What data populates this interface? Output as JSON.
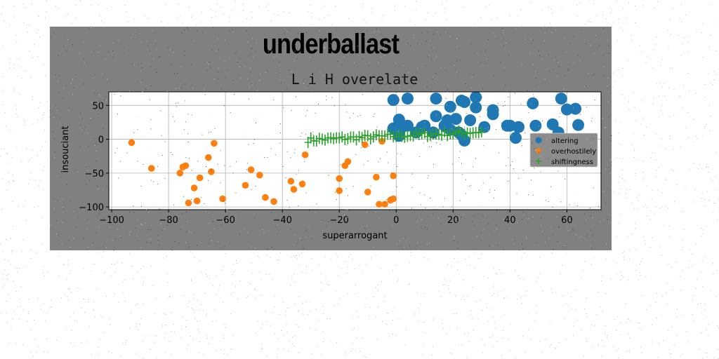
{
  "figure": {
    "super_title": "underballast"
  },
  "chart_data": {
    "type": "scatter",
    "title": "L i H overelate",
    "xlabel": "superarrogant",
    "ylabel": "insouciant",
    "xlim": [
      -101,
      72
    ],
    "ylim": [
      -104,
      70
    ],
    "xticks": [
      -100,
      -80,
      -60,
      -40,
      -20,
      0,
      20,
      40,
      60
    ],
    "yticks": [
      -100,
      -50,
      0,
      50
    ],
    "grid": true,
    "legend_position": "center-right",
    "series": [
      {
        "name": "altering",
        "marker": "circle-large",
        "color": "#1f77b4",
        "points": [
          [
            -1,
            58
          ],
          [
            4,
            60
          ],
          [
            14,
            60
          ],
          [
            23,
            57
          ],
          [
            24,
            55
          ],
          [
            28,
            62
          ],
          [
            28,
            47
          ],
          [
            19,
            48
          ],
          [
            34,
            37
          ],
          [
            34,
            43
          ],
          [
            31,
            18
          ],
          [
            17,
            20
          ],
          [
            18,
            28
          ],
          [
            21,
            30
          ],
          [
            26,
            28
          ],
          [
            19,
            14
          ],
          [
            10,
            20
          ],
          [
            9,
            18
          ],
          [
            2,
            18
          ],
          [
            -1,
            16
          ],
          [
            1,
            22
          ],
          [
            1,
            29
          ],
          [
            4,
            20
          ],
          [
            7,
            10
          ],
          [
            13,
            10
          ],
          [
            14,
            34
          ],
          [
            22,
            10
          ],
          [
            23,
            6
          ],
          [
            24,
            -2
          ],
          [
            1,
            5
          ],
          [
            40,
            20
          ],
          [
            39,
            20
          ],
          [
            43,
            18
          ],
          [
            42,
            2
          ],
          [
            48,
            53
          ],
          [
            49,
            20
          ],
          [
            55,
            22
          ],
          [
            57,
            10
          ],
          [
            58,
            60
          ],
          [
            60,
            44
          ],
          [
            63,
            45
          ],
          [
            64,
            21
          ]
        ]
      },
      {
        "name": "overhostilely",
        "marker": "circle-small",
        "color": "#ff7f0e",
        "points": [
          [
            -93,
            -5
          ],
          [
            -86,
            -43
          ],
          [
            -76,
            -50
          ],
          [
            -75,
            -41
          ],
          [
            -74,
            -39
          ],
          [
            -73,
            -94
          ],
          [
            -71,
            -72
          ],
          [
            -70,
            -91
          ],
          [
            -69,
            -57
          ],
          [
            -66,
            -27
          ],
          [
            -65,
            -48
          ],
          [
            -64,
            -6
          ],
          [
            -61,
            -88
          ],
          [
            -53,
            -68
          ],
          [
            -51,
            -45
          ],
          [
            -48,
            -53
          ],
          [
            -46,
            -86
          ],
          [
            -43,
            -92
          ],
          [
            -37,
            -62
          ],
          [
            -36,
            -74
          ],
          [
            -33,
            -66
          ],
          [
            -32,
            -23
          ],
          [
            -20,
            -58
          ],
          [
            -20,
            -76
          ],
          [
            -18,
            -39
          ],
          [
            -17,
            -33
          ],
          [
            -11,
            -8
          ],
          [
            -10,
            -78
          ],
          [
            -7,
            -56
          ],
          [
            -6,
            -96
          ],
          [
            -4,
            -96
          ],
          [
            -5,
            -3
          ],
          [
            -2,
            -90
          ],
          [
            -1,
            -88
          ],
          [
            -1,
            -54
          ]
        ]
      },
      {
        "name": "shiftingness",
        "marker": "plus",
        "color": "#2ca02c",
        "x_range": [
          -31,
          30
        ],
        "line": {
          "slope": 0.2,
          "intercept": 5,
          "jitter": 7
        }
      }
    ]
  }
}
